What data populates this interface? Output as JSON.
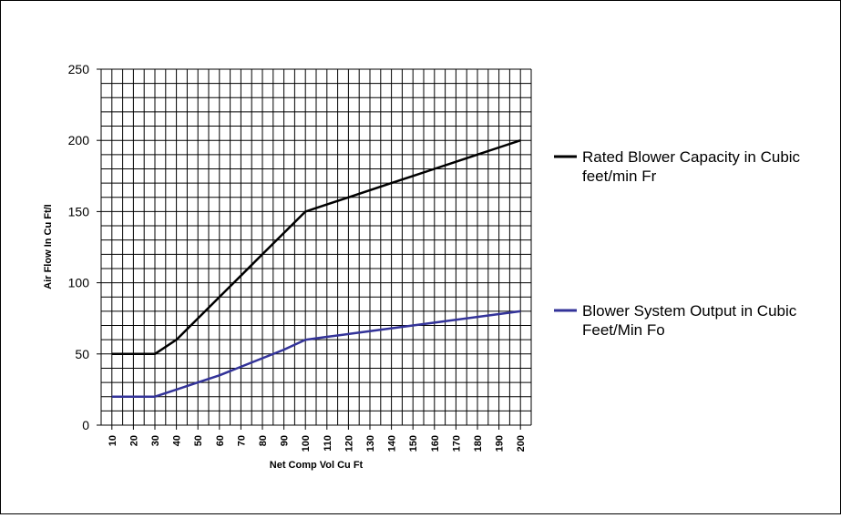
{
  "chart_data": {
    "type": "line",
    "xlabel": "Net Comp Vol Cu Ft",
    "ylabel": "Air Flow In Cu Ft/I",
    "x": [
      "10",
      "20",
      "30",
      "40",
      "50",
      "60",
      "70",
      "80",
      "90",
      "100",
      "110",
      "120",
      "130",
      "140",
      "150",
      "160",
      "170",
      "180",
      "190",
      "200"
    ],
    "ylim": [
      0,
      250
    ],
    "yticks": [
      "0",
      "50",
      "100",
      "150",
      "200",
      "250"
    ],
    "grid": true,
    "legend_position": "right",
    "series": [
      {
        "name": "Rated Blower Capacity in Cubic feet/min Fr",
        "color": "#000000",
        "values": [
          50,
          50,
          50,
          60,
          75,
          90,
          105,
          120,
          135,
          150,
          155,
          160,
          165,
          170,
          175,
          180,
          185,
          190,
          195,
          200
        ]
      },
      {
        "name": "Blower System Output in Cubic Feet/Min Fo",
        "color": "#333399",
        "values": [
          20,
          20,
          20,
          25,
          30,
          35,
          41,
          47,
          53,
          60,
          62,
          64,
          66,
          68,
          70,
          72,
          74,
          76,
          78,
          80
        ]
      }
    ]
  }
}
